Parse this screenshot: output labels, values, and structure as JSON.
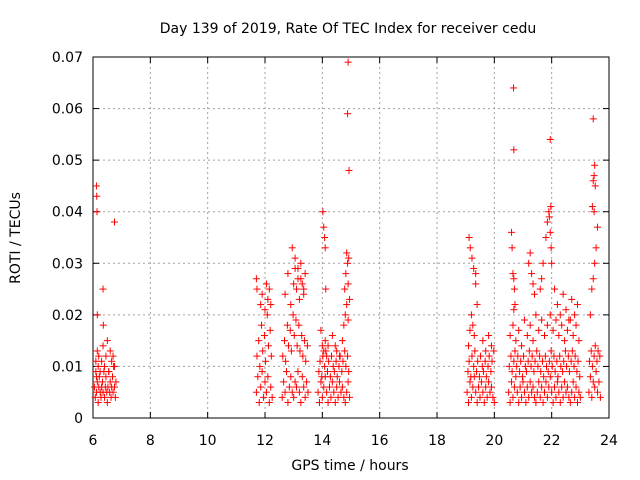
{
  "chart_data": {
    "type": "scatter",
    "title": "Day 139 of 2019, Rate Of TEC Index for receiver cedu",
    "xlabel": "GPS time / hours",
    "ylabel": "ROTI / TECUs",
    "xlim": [
      6,
      24
    ],
    "ylim": [
      0,
      0.07
    ],
    "grid": true,
    "x_ticks": [
      6,
      8,
      10,
      12,
      14,
      16,
      18,
      20,
      22,
      24
    ],
    "y_ticks": [
      0,
      0.01,
      0.02,
      0.03,
      0.04,
      0.05,
      0.06,
      0.07
    ],
    "x_tick_labels": [
      "6",
      "8",
      "10",
      "12",
      "14",
      "16",
      "18",
      "20",
      "22",
      "24"
    ],
    "y_tick_labels": [
      "0",
      "0.01",
      "0.02",
      "0.03",
      "0.04",
      "0.05",
      "0.06",
      "0.07"
    ],
    "marker": "+",
    "marker_color": "#ff0000",
    "series": [
      {
        "name": "ROTI",
        "x": [
          6.05,
          6.08,
          6.1,
          6.12,
          6.15,
          6.18,
          6.2,
          6.22,
          6.25,
          6.28,
          6.3,
          6.33,
          6.35,
          6.38,
          6.4,
          6.43,
          6.45,
          6.48,
          6.5,
          6.52,
          6.55,
          6.58,
          6.6,
          6.63,
          6.65,
          6.68,
          6.7,
          6.72,
          6.75,
          6.78,
          6.8,
          6.1,
          6.12,
          6.15,
          6.18,
          6.2,
          6.25,
          6.3,
          6.35,
          6.4,
          6.45,
          6.5,
          6.55,
          6.6,
          6.65,
          6.7,
          6.75,
          6.12,
          6.13,
          6.14,
          6.15,
          6.35,
          6.36,
          6.75,
          11.7,
          11.75,
          11.8,
          11.85,
          11.9,
          11.95,
          12.0,
          12.05,
          12.1,
          12.15,
          12.2,
          12.25,
          11.72,
          11.78,
          11.82,
          11.88,
          11.92,
          11.98,
          12.02,
          12.08,
          12.12,
          12.18,
          12.22,
          11.7,
          11.72,
          11.85,
          11.9,
          12.0,
          12.05,
          12.1,
          12.15,
          12.2,
          12.6,
          12.65,
          12.7,
          12.75,
          12.8,
          12.85,
          12.9,
          12.95,
          13.0,
          13.05,
          13.1,
          13.15,
          13.2,
          13.25,
          13.3,
          13.35,
          13.4,
          13.45,
          13.5,
          12.62,
          12.68,
          12.72,
          12.78,
          12.82,
          12.88,
          12.92,
          12.98,
          13.02,
          13.08,
          13.12,
          13.18,
          13.22,
          13.28,
          13.32,
          13.38,
          13.42,
          13.48,
          12.7,
          12.8,
          12.9,
          13.0,
          13.05,
          13.1,
          13.15,
          13.2,
          13.25,
          13.3,
          13.35,
          13.4,
          12.95,
          13.05,
          13.15,
          13.25,
          13.35,
          13.85,
          13.9,
          13.95,
          14.0,
          14.05,
          14.1,
          14.15,
          14.2,
          14.25,
          14.3,
          14.35,
          14.4,
          14.45,
          14.5,
          14.55,
          14.6,
          14.65,
          14.7,
          14.75,
          14.8,
          14.85,
          14.9,
          14.95,
          13.88,
          13.92,
          13.98,
          14.02,
          14.08,
          14.12,
          14.18,
          14.22,
          14.28,
          14.32,
          14.38,
          14.42,
          14.48,
          14.52,
          14.58,
          14.62,
          14.68,
          14.72,
          14.78,
          14.82,
          14.88,
          14.92,
          13.95,
          14.0,
          14.05,
          14.1,
          14.15,
          14.2,
          14.35,
          14.45,
          14.5,
          14.6,
          14.7,
          14.75,
          14.8,
          14.85,
          14.9,
          14.02,
          14.05,
          14.08,
          14.1,
          14.12,
          14.78,
          14.82,
          14.85,
          14.88,
          14.9,
          14.92,
          14.95,
          14.9,
          14.88,
          14.93,
          19.05,
          19.1,
          19.15,
          19.2,
          19.25,
          19.3,
          19.35,
          19.4,
          19.45,
          19.5,
          19.55,
          19.6,
          19.65,
          19.7,
          19.75,
          19.8,
          19.85,
          19.9,
          19.95,
          20.0,
          19.08,
          19.12,
          19.18,
          19.22,
          19.28,
          19.32,
          19.38,
          19.42,
          19.48,
          19.52,
          19.58,
          19.62,
          19.68,
          19.72,
          19.78,
          19.82,
          19.88,
          19.92,
          19.98,
          19.1,
          19.15,
          19.2,
          19.25,
          19.3,
          19.35,
          19.4,
          19.6,
          19.7,
          19.8,
          19.9,
          19.12,
          19.16,
          19.22,
          19.28,
          19.35,
          20.5,
          20.55,
          20.6,
          20.65,
          20.7,
          20.75,
          20.8,
          20.85,
          20.9,
          20.95,
          21.0,
          21.05,
          21.1,
          21.15,
          21.2,
          21.25,
          21.3,
          21.35,
          21.4,
          21.45,
          21.5,
          21.55,
          21.6,
          21.65,
          21.7,
          21.75,
          21.8,
          21.85,
          21.9,
          21.95,
          22.0,
          22.05,
          22.1,
          22.15,
          22.2,
          22.25,
          22.3,
          22.35,
          22.4,
          22.45,
          22.5,
          22.55,
          22.6,
          22.65,
          22.7,
          22.75,
          22.8,
          22.85,
          22.9,
          22.95,
          23.0,
          20.52,
          20.58,
          20.62,
          20.68,
          20.72,
          20.78,
          20.82,
          20.88,
          20.92,
          20.98,
          21.02,
          21.08,
          21.12,
          21.18,
          21.22,
          21.28,
          21.32,
          21.38,
          21.42,
          21.48,
          21.52,
          21.58,
          21.62,
          21.68,
          21.72,
          21.78,
          21.82,
          21.88,
          21.92,
          21.98,
          22.02,
          22.08,
          22.12,
          22.18,
          22.22,
          22.28,
          22.32,
          22.38,
          22.42,
          22.48,
          22.52,
          22.58,
          22.62,
          22.68,
          22.72,
          22.78,
          22.82,
          22.88,
          22.92,
          22.98,
          20.55,
          20.65,
          20.75,
          20.85,
          20.95,
          21.05,
          21.15,
          21.25,
          21.35,
          21.45,
          21.55,
          21.65,
          21.75,
          21.85,
          21.95,
          22.05,
          22.15,
          22.25,
          22.35,
          22.45,
          22.55,
          22.65,
          22.75,
          22.85,
          22.95,
          20.6,
          20.62,
          20.65,
          20.68,
          20.7,
          20.72,
          20.68,
          21.2,
          21.25,
          21.3,
          21.35,
          21.4,
          21.6,
          21.65,
          21.7,
          21.8,
          21.85,
          21.9,
          21.92,
          21.95,
          21.98,
          22.0,
          22.1,
          22.2,
          22.3,
          22.4,
          22.5,
          22.6,
          22.7,
          22.8,
          22.9,
          20.67,
          20.68,
          21.95,
          21.97,
          23.3,
          23.35,
          23.4,
          23.45,
          23.5,
          23.55,
          23.6,
          23.65,
          23.7,
          23.32,
          23.38,
          23.42,
          23.48,
          23.52,
          23.58,
          23.62,
          23.68,
          23.35,
          23.4,
          23.45,
          23.5,
          23.55,
          23.6,
          23.42,
          23.45,
          23.48,
          23.5,
          23.52,
          23.45,
          23.48
        ],
        "y": [
          0.006,
          0.004,
          0.009,
          0.005,
          0.007,
          0.003,
          0.006,
          0.008,
          0.005,
          0.004,
          0.006,
          0.007,
          0.005,
          0.009,
          0.004,
          0.006,
          0.008,
          0.005,
          0.003,
          0.006,
          0.009,
          0.005,
          0.007,
          0.004,
          0.006,
          0.008,
          0.005,
          0.01,
          0.006,
          0.004,
          0.007,
          0.011,
          0.008,
          0.013,
          0.01,
          0.012,
          0.009,
          0.011,
          0.014,
          0.01,
          0.012,
          0.015,
          0.009,
          0.013,
          0.011,
          0.012,
          0.01,
          0.045,
          0.043,
          0.04,
          0.02,
          0.025,
          0.018,
          0.038,
          0.005,
          0.008,
          0.003,
          0.006,
          0.009,
          0.004,
          0.007,
          0.005,
          0.008,
          0.003,
          0.006,
          0.004,
          0.012,
          0.015,
          0.01,
          0.018,
          0.013,
          0.016,
          0.011,
          0.02,
          0.014,
          0.017,
          0.012,
          0.027,
          0.025,
          0.022,
          0.024,
          0.021,
          0.026,
          0.023,
          0.025,
          0.022,
          0.004,
          0.007,
          0.005,
          0.009,
          0.003,
          0.006,
          0.008,
          0.005,
          0.004,
          0.007,
          0.006,
          0.009,
          0.005,
          0.003,
          0.008,
          0.006,
          0.004,
          0.007,
          0.005,
          0.012,
          0.015,
          0.011,
          0.018,
          0.014,
          0.017,
          0.013,
          0.02,
          0.016,
          0.019,
          0.014,
          0.018,
          0.013,
          0.016,
          0.012,
          0.015,
          0.011,
          0.014,
          0.024,
          0.028,
          0.022,
          0.026,
          0.029,
          0.025,
          0.027,
          0.023,
          0.03,
          0.026,
          0.024,
          0.028,
          0.033,
          0.031,
          0.029,
          0.027,
          0.025,
          0.005,
          0.003,
          0.007,
          0.004,
          0.006,
          0.008,
          0.005,
          0.003,
          0.006,
          0.004,
          0.007,
          0.005,
          0.003,
          0.006,
          0.004,
          0.007,
          0.005,
          0.006,
          0.004,
          0.003,
          0.005,
          0.007,
          0.004,
          0.009,
          0.011,
          0.008,
          0.012,
          0.01,
          0.013,
          0.009,
          0.011,
          0.008,
          0.012,
          0.01,
          0.009,
          0.011,
          0.008,
          0.01,
          0.012,
          0.009,
          0.011,
          0.013,
          0.01,
          0.012,
          0.009,
          0.017,
          0.014,
          0.013,
          0.015,
          0.012,
          0.014,
          0.016,
          0.014,
          0.013,
          0.012,
          0.015,
          0.018,
          0.02,
          0.022,
          0.019,
          0.04,
          0.037,
          0.035,
          0.033,
          0.025,
          0.025,
          0.028,
          0.032,
          0.03,
          0.026,
          0.031,
          0.023,
          0.069,
          0.059,
          0.048,
          0.005,
          0.003,
          0.007,
          0.004,
          0.006,
          0.008,
          0.005,
          0.003,
          0.006,
          0.004,
          0.007,
          0.005,
          0.003,
          0.006,
          0.004,
          0.007,
          0.005,
          0.006,
          0.004,
          0.003,
          0.009,
          0.011,
          0.008,
          0.012,
          0.01,
          0.013,
          0.009,
          0.011,
          0.008,
          0.012,
          0.01,
          0.009,
          0.011,
          0.008,
          0.01,
          0.012,
          0.009,
          0.011,
          0.013,
          0.014,
          0.017,
          0.02,
          0.018,
          0.016,
          0.026,
          0.022,
          0.015,
          0.013,
          0.016,
          0.014,
          0.035,
          0.033,
          0.031,
          0.029,
          0.028,
          0.005,
          0.003,
          0.007,
          0.004,
          0.006,
          0.008,
          0.005,
          0.003,
          0.006,
          0.004,
          0.007,
          0.005,
          0.003,
          0.006,
          0.004,
          0.007,
          0.005,
          0.006,
          0.004,
          0.003,
          0.005,
          0.007,
          0.004,
          0.006,
          0.003,
          0.005,
          0.007,
          0.004,
          0.006,
          0.008,
          0.005,
          0.003,
          0.006,
          0.004,
          0.007,
          0.005,
          0.003,
          0.006,
          0.004,
          0.007,
          0.005,
          0.006,
          0.004,
          0.003,
          0.005,
          0.007,
          0.004,
          0.006,
          0.003,
          0.005,
          0.004,
          0.01,
          0.012,
          0.009,
          0.011,
          0.013,
          0.01,
          0.012,
          0.009,
          0.011,
          0.008,
          0.012,
          0.01,
          0.009,
          0.011,
          0.013,
          0.01,
          0.012,
          0.009,
          0.011,
          0.013,
          0.01,
          0.012,
          0.009,
          0.011,
          0.008,
          0.012,
          0.01,
          0.009,
          0.011,
          0.013,
          0.01,
          0.012,
          0.009,
          0.011,
          0.008,
          0.012,
          0.01,
          0.009,
          0.011,
          0.013,
          0.01,
          0.012,
          0.009,
          0.011,
          0.013,
          0.01,
          0.012,
          0.009,
          0.011,
          0.008,
          0.016,
          0.018,
          0.015,
          0.017,
          0.014,
          0.019,
          0.016,
          0.018,
          0.015,
          0.02,
          0.017,
          0.019,
          0.016,
          0.018,
          0.02,
          0.017,
          0.019,
          0.016,
          0.018,
          0.015,
          0.017,
          0.019,
          0.016,
          0.018,
          0.015,
          0.036,
          0.033,
          0.028,
          0.027,
          0.025,
          0.022,
          0.021,
          0.03,
          0.032,
          0.028,
          0.026,
          0.024,
          0.025,
          0.027,
          0.03,
          0.035,
          0.038,
          0.04,
          0.039,
          0.036,
          0.033,
          0.03,
          0.025,
          0.022,
          0.02,
          0.024,
          0.021,
          0.019,
          0.023,
          0.02,
          0.022,
          0.064,
          0.052,
          0.054,
          0.041,
          0.005,
          0.008,
          0.004,
          0.007,
          0.006,
          0.009,
          0.005,
          0.007,
          0.004,
          0.011,
          0.013,
          0.01,
          0.012,
          0.014,
          0.011,
          0.013,
          0.012,
          0.02,
          0.025,
          0.027,
          0.03,
          0.033,
          0.037,
          0.041,
          0.046,
          0.047,
          0.049,
          0.045,
          0.058,
          0.04
        ]
      }
    ]
  }
}
